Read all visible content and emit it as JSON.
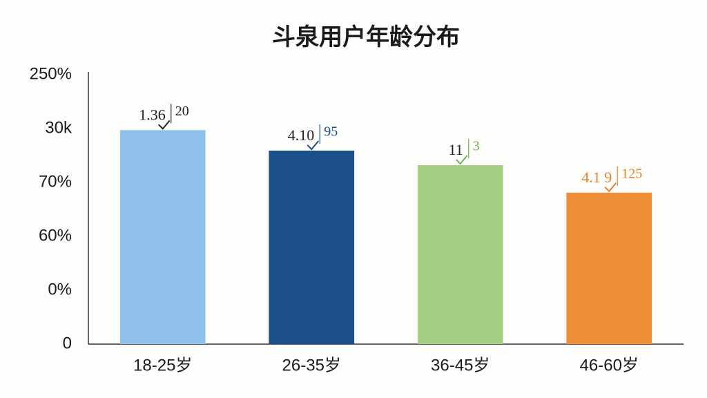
{
  "chart_data": {
    "type": "bar",
    "title": "斗泉用户年龄分布",
    "categories": [
      "18-25岁",
      "26-35岁",
      "36-45岁",
      "46-60岁"
    ],
    "values": [
      3.97,
      3.59,
      3.32,
      2.81
    ],
    "colors": [
      "#8fc1ea",
      "#1b4f8a",
      "#a4cf84",
      "#ef8f3a"
    ],
    "annotations": [
      {
        "left": "1.36",
        "right": "20",
        "left_color": "#222222",
        "right_color": "#222222"
      },
      {
        "left": "4.10",
        "right": "95",
        "left_color": "#222222",
        "right_color": "#1b4f8a"
      },
      {
        "left": "11",
        "right": "3",
        "left_color": "#222222",
        "right_color": "#6fb34f"
      },
      {
        "left": "4.1 9",
        "right": "125",
        "left_color": "#e8822a",
        "right_color": "#e8822a"
      }
    ],
    "ylim": [
      0,
      5
    ],
    "yticks": [
      0,
      {
        "value": 1,
        "label": "0%"
      },
      {
        "value": 2,
        "label": "60%"
      },
      {
        "value": 3,
        "label": "70%"
      },
      {
        "value": 4,
        "label": "30k"
      },
      {
        "value": 5,
        "label": "250%"
      }
    ],
    "grid": false
  }
}
